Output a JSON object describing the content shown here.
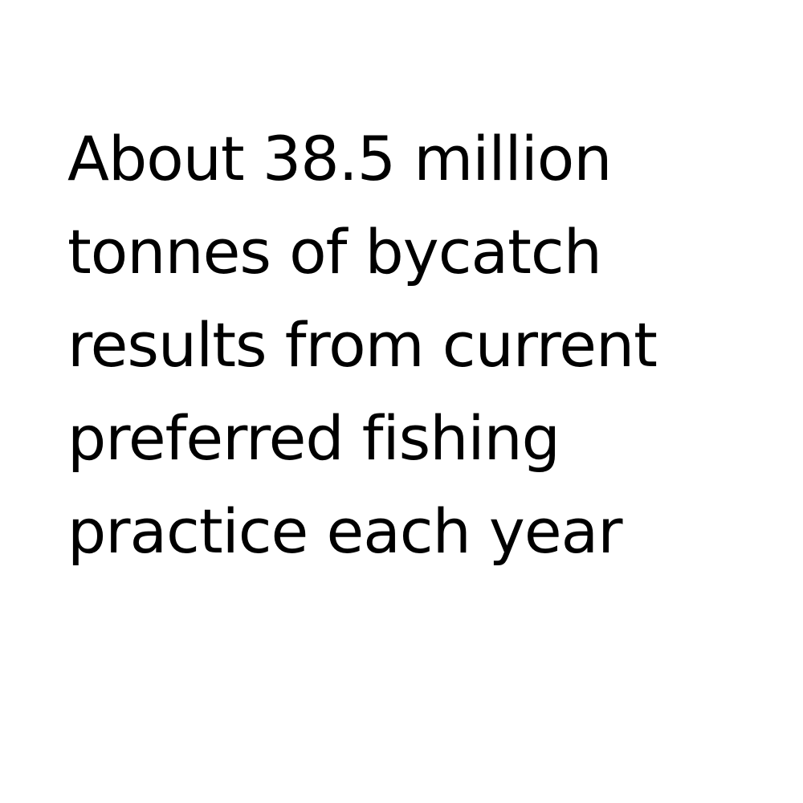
{
  "statement": {
    "lines": [
      "About 38.5 million",
      "tonnes of bycatch",
      "results from current",
      "preferred fishing",
      "practice each year"
    ]
  },
  "colors": {
    "background": "#ffffff",
    "text": "#000000"
  }
}
